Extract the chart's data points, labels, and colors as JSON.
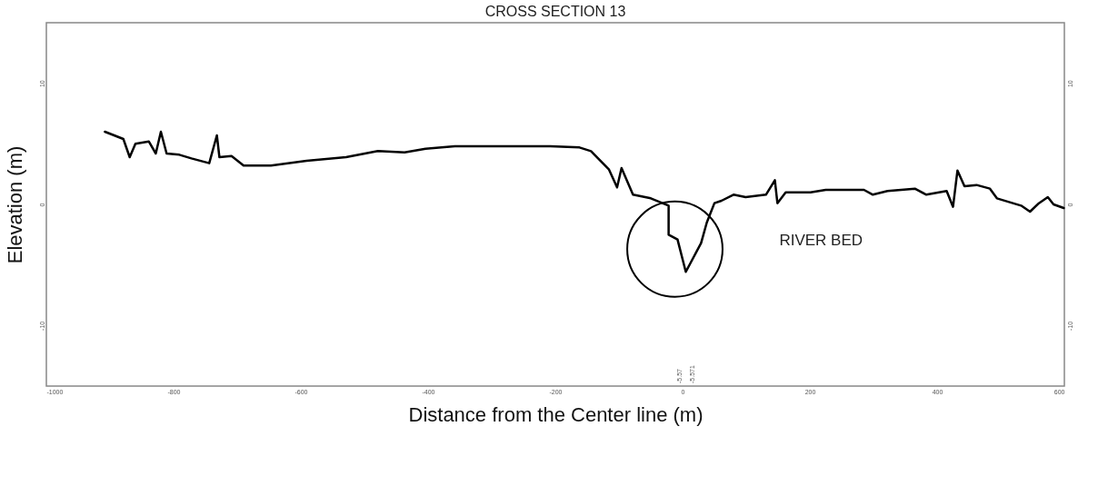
{
  "chart_data": {
    "type": "line",
    "title": "CROSS SECTION 13",
    "xlabel": "Distance from the Center line (m)",
    "ylabel": "Elevation (m)",
    "x": [
      -908,
      -879,
      -869,
      -860,
      -839,
      -828,
      -820,
      -811,
      -791,
      -772,
      -744,
      -732,
      -728,
      -709,
      -690,
      -647,
      -591,
      -529,
      -479,
      -437,
      -404,
      -358,
      -311,
      -208,
      -162,
      -144,
      -116,
      -103,
      -96,
      -78,
      -50,
      -22,
      -22,
      -8,
      5,
      29,
      38,
      50,
      61,
      80,
      99,
      131,
      145,
      149,
      162,
      201,
      225,
      285,
      299,
      322,
      365,
      383,
      415,
      425,
      432,
      443,
      462,
      483,
      494,
      513,
      532,
      546,
      560,
      574,
      583,
      599
    ],
    "series": [
      {
        "color": "#000000",
        "values": [
          6.0,
          5.4,
          3.9,
          5.0,
          5.2,
          4.2,
          6.0,
          4.2,
          4.1,
          3.8,
          3.4,
          5.7,
          3.9,
          4.0,
          3.2,
          3.2,
          3.6,
          3.9,
          4.4,
          4.3,
          4.6,
          4.8,
          4.8,
          4.8,
          4.7,
          4.4,
          2.9,
          1.4,
          3.0,
          0.8,
          0.5,
          -0.1,
          -2.5,
          -2.9,
          -5.57,
          -3.2,
          -1.5,
          0.1,
          0.3,
          0.8,
          0.6,
          0.8,
          2.0,
          0.1,
          1.0,
          1.0,
          1.2,
          1.2,
          0.8,
          1.1,
          1.3,
          0.8,
          1.1,
          -0.2,
          2.8,
          1.5,
          1.6,
          1.3,
          0.5,
          0.2,
          -0.1,
          -0.6,
          0.1,
          0.6,
          0.0,
          -0.3
        ]
      }
    ],
    "xlim": [
      -1000,
      600
    ],
    "xticks": [
      -1000,
      -800,
      -600,
      -400,
      -200,
      0,
      200,
      400,
      600
    ],
    "ylim": [
      -15,
      15
    ],
    "yticks": [
      -10,
      0,
      10
    ],
    "y2lim": [
      -15,
      15
    ],
    "y2ticks": [
      -10,
      0,
      10
    ],
    "annotations": [
      "RIVER BED",
      "-5.57",
      "-5.571"
    ],
    "line_style": "solid"
  }
}
